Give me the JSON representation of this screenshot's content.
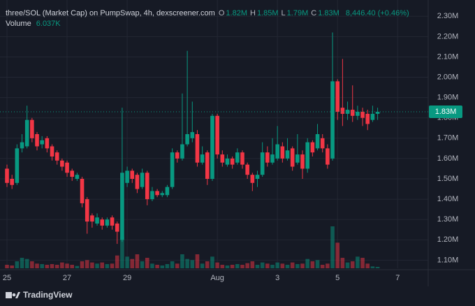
{
  "chart_data": {
    "type": "candlestick",
    "title": "three/SOL (Market Cap) on PumpSwap, 4h, dexscreener.com",
    "ohlc_legend": [
      {
        "label": "O",
        "value": "1.82M"
      },
      {
        "label": "H",
        "value": "1.85M"
      },
      {
        "label": "L",
        "value": "1.79M"
      },
      {
        "label": "C",
        "value": "1.83M"
      }
    ],
    "change": "8,446.40 (+0.46%)",
    "volume_name": "Volume",
    "volume_legend": "6.037K",
    "branding": "TradingView",
    "up_color": "#089981",
    "down_color": "#f23645",
    "grid": true,
    "categories": [
      "25",
      null,
      null,
      null,
      null,
      null,
      null,
      null,
      null,
      null,
      null,
      null,
      "27",
      null,
      null,
      null,
      null,
      null,
      null,
      null,
      null,
      null,
      null,
      null,
      "29",
      null,
      null,
      null,
      null,
      null,
      null,
      null,
      null,
      null,
      null,
      null,
      null,
      null,
      null,
      null,
      null,
      null,
      "Aug",
      null,
      null,
      null,
      null,
      null,
      null,
      null,
      null,
      null,
      null,
      null,
      "3",
      null,
      null,
      null,
      null,
      null,
      null,
      null,
      null,
      null,
      null,
      null,
      "5",
      null,
      null,
      null,
      null,
      null,
      null,
      null,
      null,
      null,
      null,
      null,
      "7"
    ],
    "open": [
      1.55,
      1.5,
      1.48,
      1.65,
      1.66,
      1.79,
      1.72,
      1.67,
      1.7,
      1.66,
      1.63,
      1.59,
      1.58,
      1.54,
      1.5,
      1.5,
      1.4,
      1.32,
      1.28,
      1.3,
      1.27,
      1.31,
      1.28,
      1.2,
      1.48,
      1.54,
      1.52,
      1.46,
      1.53,
      1.4,
      1.44,
      1.42,
      1.42,
      1.46,
      1.63,
      1.6,
      1.67,
      1.7,
      1.72,
      1.58,
      1.63,
      1.5,
      1.81,
      1.62,
      1.57,
      1.6,
      1.58,
      1.63,
      1.57,
      1.52,
      1.5,
      1.52,
      1.63,
      1.58,
      1.6,
      1.66,
      1.6,
      1.65,
      1.58,
      1.62,
      1.55,
      1.68,
      1.65,
      1.7,
      1.65,
      1.6,
      1.98,
      1.85,
      1.82,
      1.84,
      1.81,
      1.83,
      1.82,
      1.79,
      1.82,
      null,
      null,
      null,
      null
    ],
    "high": [
      1.57,
      1.52,
      1.67,
      1.72,
      1.86,
      1.8,
      1.73,
      1.71,
      1.71,
      1.67,
      1.64,
      1.6,
      1.59,
      1.55,
      1.53,
      1.51,
      1.41,
      1.33,
      1.33,
      1.31,
      1.31,
      1.32,
      1.29,
      1.85,
      1.56,
      1.55,
      1.53,
      1.55,
      1.54,
      1.46,
      1.45,
      1.44,
      1.47,
      1.65,
      1.64,
      1.92,
      2.13,
      1.88,
      1.74,
      1.66,
      1.64,
      1.82,
      1.82,
      1.64,
      1.62,
      1.61,
      1.65,
      1.64,
      1.58,
      1.53,
      1.54,
      1.68,
      1.66,
      1.7,
      1.76,
      1.68,
      1.7,
      1.66,
      1.72,
      1.64,
      1.7,
      1.69,
      1.77,
      1.72,
      1.67,
      2.22,
      1.99,
      2.09,
      1.88,
      1.96,
      1.86,
      1.85,
      1.84,
      1.86,
      1.85,
      null,
      null,
      null,
      null
    ],
    "low": [
      1.46,
      1.45,
      1.47,
      1.63,
      1.65,
      1.68,
      1.64,
      1.65,
      1.63,
      1.59,
      1.57,
      1.54,
      1.51,
      1.49,
      1.49,
      1.36,
      1.23,
      1.26,
      1.27,
      1.25,
      1.26,
      1.25,
      1.18,
      1.19,
      1.46,
      1.48,
      1.43,
      1.45,
      1.37,
      1.39,
      1.41,
      1.41,
      1.41,
      1.45,
      1.58,
      1.59,
      1.66,
      1.68,
      1.56,
      1.57,
      1.47,
      1.49,
      1.6,
      1.56,
      1.56,
      1.55,
      1.57,
      1.55,
      1.5,
      1.44,
      1.46,
      1.51,
      1.56,
      1.57,
      1.59,
      1.58,
      1.59,
      1.54,
      1.57,
      1.5,
      1.53,
      1.61,
      1.64,
      1.63,
      1.55,
      1.59,
      1.79,
      1.76,
      1.79,
      1.78,
      1.79,
      1.76,
      1.74,
      1.78,
      1.79,
      null,
      null,
      null,
      null
    ],
    "close": [
      1.48,
      1.47,
      1.65,
      1.68,
      1.79,
      1.7,
      1.66,
      1.69,
      1.65,
      1.61,
      1.59,
      1.56,
      1.53,
      1.51,
      1.52,
      1.38,
      1.29,
      1.29,
      1.31,
      1.27,
      1.3,
      1.27,
      1.24,
      1.53,
      1.54,
      1.5,
      1.45,
      1.53,
      1.4,
      1.44,
      1.42,
      1.43,
      1.46,
      1.63,
      1.6,
      1.67,
      1.72,
      1.73,
      1.58,
      1.62,
      1.5,
      1.81,
      1.62,
      1.58,
      1.6,
      1.57,
      1.63,
      1.57,
      1.52,
      1.48,
      1.52,
      1.63,
      1.58,
      1.62,
      1.67,
      1.6,
      1.64,
      1.56,
      1.62,
      1.55,
      1.68,
      1.63,
      1.72,
      1.65,
      1.57,
      1.98,
      1.83,
      1.82,
      1.84,
      1.81,
      1.83,
      1.8,
      1.77,
      1.82,
      1.83,
      null,
      null,
      null,
      null
    ],
    "volume": [
      15,
      12,
      30,
      45,
      40,
      30,
      20,
      18,
      15,
      18,
      15,
      25,
      20,
      15,
      10,
      30,
      35,
      25,
      20,
      25,
      18,
      20,
      55,
      135,
      50,
      40,
      60,
      30,
      45,
      20,
      15,
      12,
      18,
      30,
      20,
      60,
      40,
      35,
      60,
      20,
      30,
      50,
      25,
      15,
      12,
      15,
      18,
      15,
      22,
      30,
      15,
      25,
      20,
      15,
      25,
      20,
      15,
      25,
      18,
      20,
      40,
      30,
      35,
      15,
      20,
      180,
      110,
      45,
      25,
      30,
      50,
      45,
      20,
      8,
      6.037,
      null,
      null,
      null,
      null
    ],
    "ylim": [
      1.06,
      2.38
    ],
    "yticks": [
      {
        "value": 1.1,
        "label": "1.10M"
      },
      {
        "value": 1.2,
        "label": "1.20M"
      },
      {
        "value": 1.3,
        "label": "1.30M"
      },
      {
        "value": 1.4,
        "label": "1.40M"
      },
      {
        "value": 1.5,
        "label": "1.50M"
      },
      {
        "value": 1.6,
        "label": "1.60M"
      },
      {
        "value": 1.7,
        "label": "1.70M"
      },
      {
        "value": 1.8,
        "label": "1.80M"
      },
      {
        "value": 1.9,
        "label": "1.90M"
      },
      {
        "value": 2.0,
        "label": "2.00M"
      },
      {
        "value": 2.1,
        "label": "2.10M"
      },
      {
        "value": 2.2,
        "label": "2.20M"
      },
      {
        "value": 2.3,
        "label": "2.30M"
      }
    ],
    "last_price": {
      "value": 1.83,
      "label": "1.83M"
    }
  }
}
